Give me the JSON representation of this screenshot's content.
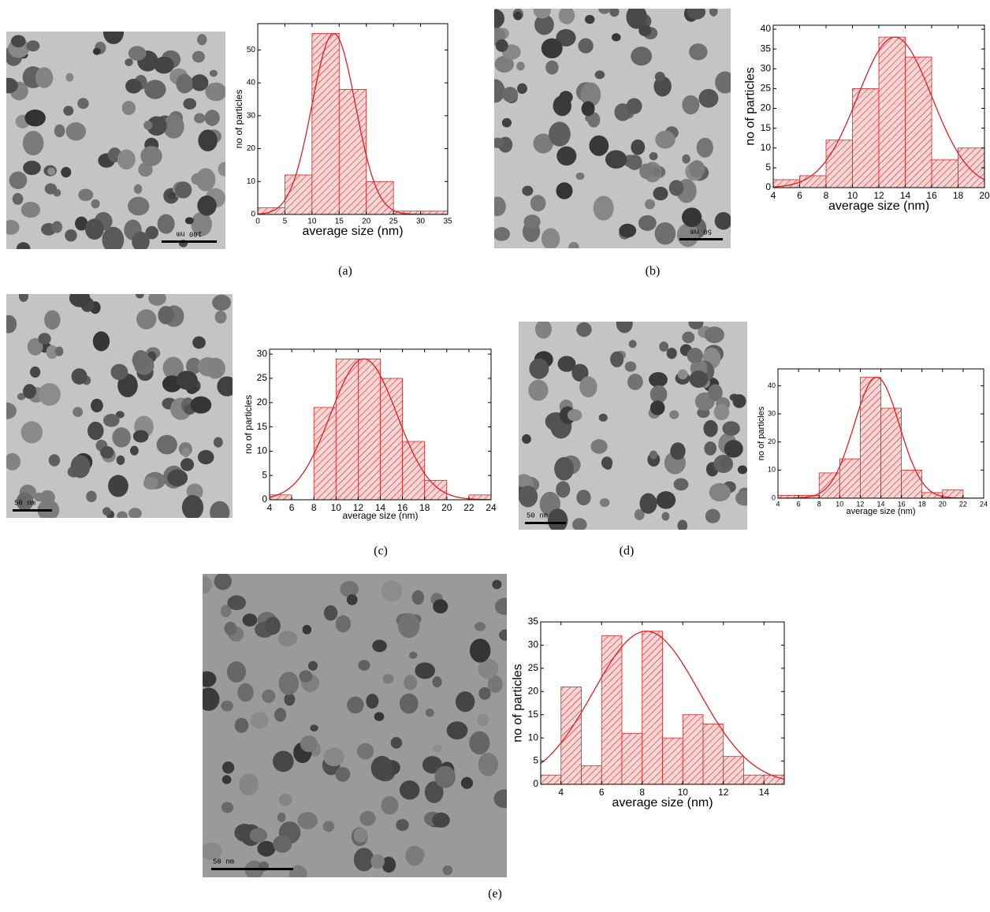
{
  "chart_data": [
    {
      "type": "histogram",
      "panel_label": "(a)",
      "scale_bar_label": "100 nm",
      "xlabel": "average size (nm)",
      "ylabel": "no of particles",
      "bins": [
        0,
        5,
        10,
        15,
        20,
        25,
        30,
        35
      ],
      "values": [
        2,
        12,
        55,
        38,
        10,
        1,
        1
      ],
      "color": "#e02020",
      "xlim": [
        0,
        35
      ],
      "ylim": [
        0,
        58
      ],
      "xticks": [
        0,
        5,
        10,
        15,
        20,
        25,
        30,
        35
      ],
      "yticks": [
        0,
        10,
        20,
        30,
        40,
        50
      ],
      "fit": {
        "center": 14,
        "width": 4,
        "height": 55
      }
    },
    {
      "type": "histogram",
      "panel_label": "(b)",
      "scale_bar_label": "50 nm",
      "xlabel": "average size (nm)",
      "ylabel": "no of particles",
      "bins": [
        4,
        6,
        8,
        10,
        12,
        14,
        16,
        18,
        20
      ],
      "values": [
        2,
        3,
        12,
        25,
        38,
        33,
        7,
        10
      ],
      "color": "#e02020",
      "xlim": [
        4,
        20
      ],
      "ylim": [
        0,
        41
      ],
      "xticks": [
        4,
        6,
        8,
        10,
        12,
        14,
        16,
        18,
        20
      ],
      "yticks": [
        0,
        5,
        10,
        15,
        20,
        25,
        30,
        35,
        40
      ],
      "fit": {
        "center": 13.2,
        "width": 2.8,
        "height": 38
      }
    },
    {
      "type": "histogram",
      "panel_label": "(c)",
      "scale_bar_label": "50 nm",
      "xlabel": "average size (nm)",
      "ylabel": "no of particles",
      "bins": [
        4,
        6,
        8,
        10,
        12,
        14,
        16,
        18,
        20,
        22,
        24
      ],
      "values": [
        1,
        0,
        19,
        29,
        29,
        25,
        12,
        4,
        0,
        1
      ],
      "color": "#e02020",
      "xlim": [
        4,
        24
      ],
      "ylim": [
        0,
        31
      ],
      "xticks": [
        4,
        6,
        8,
        10,
        12,
        14,
        16,
        18,
        20,
        22,
        24
      ],
      "yticks": [
        0,
        5,
        10,
        15,
        20,
        25,
        30
      ],
      "fit": {
        "center": 12.5,
        "width": 3,
        "height": 29
      }
    },
    {
      "type": "histogram",
      "panel_label": "(d)",
      "scale_bar_label": "50 nm",
      "xlabel": "average size (nm)",
      "ylabel": "no of particles",
      "bins": [
        4,
        6,
        8,
        10,
        12,
        14,
        16,
        18,
        20,
        22,
        24
      ],
      "values": [
        1,
        1,
        9,
        14,
        43,
        32,
        10,
        2,
        3,
        0
      ],
      "color": "#e02020",
      "xlim": [
        4,
        24
      ],
      "ylim": [
        0,
        46
      ],
      "xticks": [
        4,
        6,
        8,
        10,
        12,
        14,
        16,
        18,
        20,
        22,
        24
      ],
      "yticks": [
        0,
        10,
        20,
        30,
        40
      ],
      "fit": {
        "center": 13.6,
        "width": 2.2,
        "height": 43
      }
    },
    {
      "type": "histogram",
      "panel_label": "(e)",
      "scale_bar_label": "50 nm",
      "xlabel": "average size (nm)",
      "ylabel": "no of particles",
      "bins": [
        3,
        4,
        5,
        6,
        7,
        8,
        9,
        10,
        11,
        12,
        13,
        14,
        15
      ],
      "values": [
        2,
        21,
        4,
        32,
        11,
        33,
        10,
        15,
        13,
        6,
        2,
        2
      ],
      "color": "#e02020",
      "xlim": [
        3,
        15
      ],
      "ylim": [
        0,
        35
      ],
      "xticks": [
        4,
        6,
        8,
        10,
        12,
        14
      ],
      "yticks": [
        0,
        5,
        10,
        15,
        20,
        25,
        30,
        35
      ],
      "fit": {
        "center": 8.2,
        "width": 2.6,
        "height": 33
      }
    }
  ]
}
